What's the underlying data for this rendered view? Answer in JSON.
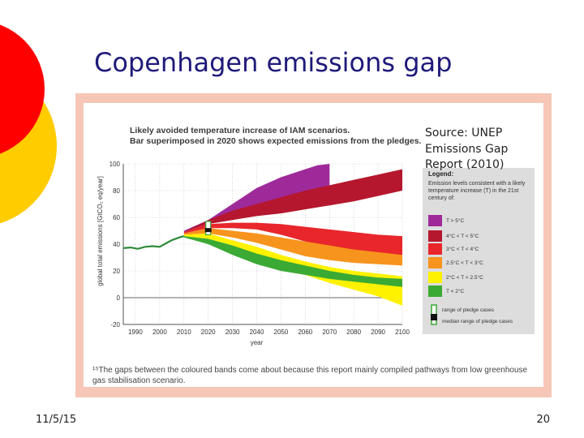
{
  "slide": {
    "title": "Copenhagen emissions gap",
    "source": [
      "Source: UNEP",
      "Emissions Gap",
      "Report (2010)"
    ],
    "date": "11/5/15",
    "page_number": "20",
    "footnote": "¹⁵The gaps between the coloured bands come about because this report mainly compiled pathways from low greenhouse gas stabilisation scenario.",
    "decoration_colors": {
      "red": "#ff0000",
      "yellow": "#ffcc00"
    },
    "frame_color": "#f6c7b6"
  },
  "chart_data": {
    "type": "area",
    "title": [
      "Likely avoided temperature increase of IAM scenarios.",
      "Bar superimposed in 2020 shows expected emissions from the pledges."
    ],
    "xlabel": "year",
    "ylabel": "global total emissions [GtCO₂ eq/year]",
    "xlim": [
      1985,
      2100
    ],
    "ylim": [
      -20,
      100
    ],
    "x_ticks": [
      1990,
      2000,
      2010,
      2020,
      2030,
      2040,
      2050,
      2060,
      2070,
      2080,
      2090,
      2100
    ],
    "y_ticks": [
      -20,
      0,
      20,
      40,
      60,
      80,
      100
    ],
    "historical": {
      "x": [
        1985,
        1988,
        1991,
        1994,
        1997,
        2000,
        2003,
        2005,
        2008,
        2010
      ],
      "y": [
        37,
        37.5,
        36.5,
        38,
        38.5,
        38,
        41,
        43,
        45,
        46
      ],
      "color": "#2e8b3a"
    },
    "series": [
      {
        "label": "T < 2°C",
        "color": "#3aaa35",
        "x": [
          2010,
          2020,
          2030,
          2040,
          2050,
          2060,
          2070,
          2080,
          2090,
          2100
        ],
        "lower": [
          45,
          40,
          32,
          25,
          20,
          17,
          14,
          12,
          10,
          8
        ],
        "upper": [
          46,
          44,
          39,
          33,
          28,
          24,
          20,
          17,
          15,
          14
        ]
      },
      {
        "label": "2°C < T < 2.5°C",
        "color": "#fff200",
        "x": [
          2010,
          2020,
          2030,
          2040,
          2050,
          2060,
          2070,
          2080,
          2090,
          2100
        ],
        "lower": [
          46,
          44,
          39,
          32,
          24,
          17,
          11,
          6,
          1,
          -6
        ],
        "upper": [
          47,
          48,
          43,
          38,
          32,
          27,
          23,
          20,
          18,
          16
        ]
      },
      {
        "label": "2.5°C < T < 3°C",
        "color": "#f7941d",
        "x": [
          2010,
          2020,
          2030,
          2040,
          2050,
          2060,
          2070,
          2080,
          2090,
          2100
        ],
        "lower": [
          47,
          48,
          45,
          41,
          36,
          31,
          28,
          26,
          25,
          24
        ],
        "upper": [
          48,
          52,
          50,
          48,
          45,
          42,
          39,
          36,
          34,
          32
        ]
      },
      {
        "label": "3°C < T < 4°C",
        "color": "#e8262b",
        "x": [
          2010,
          2020,
          2030,
          2040,
          2050,
          2060,
          2070,
          2080,
          2090,
          2100
        ],
        "lower": [
          48,
          52,
          52,
          51,
          47,
          42,
          38,
          35,
          33,
          32
        ],
        "upper": [
          49,
          55,
          56,
          56,
          55,
          53,
          51,
          49,
          47,
          46
        ]
      },
      {
        "label": "4°C < T < 5°C",
        "color": "#b5172e",
        "x": [
          2010,
          2020,
          2030,
          2040,
          2050,
          2060,
          2070,
          2080,
          2090,
          2100
        ],
        "lower": [
          49,
          55,
          58,
          61,
          63,
          66,
          69,
          72,
          76,
          80
        ],
        "upper": [
          49,
          58,
          65,
          70,
          75,
          80,
          84,
          88,
          92,
          96
        ]
      },
      {
        "label": "T > 5°C",
        "color": "#9e2a99",
        "x": [
          2010,
          2020,
          2030,
          2040,
          2050,
          2060,
          2065,
          2070
        ],
        "lower": [
          49,
          56,
          62,
          67,
          72,
          78,
          81,
          84
        ],
        "upper": [
          50,
          58,
          70,
          82,
          90,
          96,
          99,
          100
        ]
      }
    ],
    "pledge_bar": {
      "x": 2020,
      "range_of_pledge_cases": [
        47,
        57
      ],
      "median_range_of_pledge_cases": [
        49,
        52
      ]
    },
    "legend": {
      "title": "Legend:",
      "description": "Emission levels consistent with a likely temperature increase (T) in the 21st century of:",
      "items": [
        "T > 5°C",
        "4°C < T < 5°C",
        "3°C < T < 4°C",
        "2.5°C < T < 3°C",
        "2°C < T < 2.5°C",
        "T < 2°C"
      ],
      "range_label": "range of pledge cases",
      "median_label": "median range of pledge cases"
    }
  }
}
